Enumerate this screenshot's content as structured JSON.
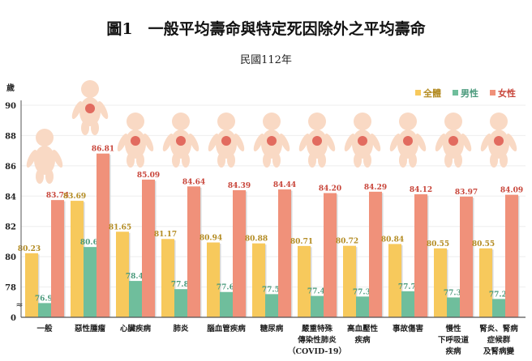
{
  "chart_data": {
    "type": "bar",
    "title": "圖1　一般平均壽命與特定死因除外之平均壽命",
    "subtitle": "民國112年",
    "ylabel": "歲",
    "ylim": [
      76,
      90
    ],
    "yticks": [
      78,
      80,
      82,
      84,
      86,
      88,
      90
    ],
    "y_bottom_label": "0",
    "axis_break": true,
    "grid": true,
    "legend_placement": "top-right",
    "categories": [
      [
        "一般"
      ],
      [
        "惡性腫瘤"
      ],
      [
        "心臟疾病"
      ],
      [
        "肺炎"
      ],
      [
        "腦血管疾病"
      ],
      [
        "糖尿病"
      ],
      [
        "嚴重特殊",
        "傳染性肺炎",
        "（COVID-19）"
      ],
      [
        "高血壓性",
        "疾病"
      ],
      [
        "事故傷害"
      ],
      [
        "慢性",
        "下呼吸道",
        "疾病"
      ],
      [
        "腎炎、腎病",
        "症候群",
        "及腎病變"
      ]
    ],
    "series": [
      {
        "name": "全體",
        "color": "#F7C95C",
        "label_color": "#B38B22",
        "values": [
          80.23,
          83.69,
          81.65,
          81.17,
          80.94,
          80.88,
          80.71,
          80.72,
          80.84,
          80.55,
          80.55
        ]
      },
      {
        "name": "男性",
        "color": "#6FBE9C",
        "label_color": "#4A9A7C",
        "values": [
          76.94,
          80.64,
          78.4,
          77.86,
          77.67,
          77.53,
          77.41,
          77.37,
          77.72,
          77.31,
          77.21
        ]
      },
      {
        "name": "女性",
        "color": "#F0917A",
        "label_color": "#C8453A",
        "values": [
          83.74,
          86.81,
          85.09,
          84.64,
          84.39,
          84.44,
          84.2,
          84.29,
          84.12,
          83.97,
          84.09
        ]
      }
    ],
    "decorations": "body-figure-icons"
  }
}
